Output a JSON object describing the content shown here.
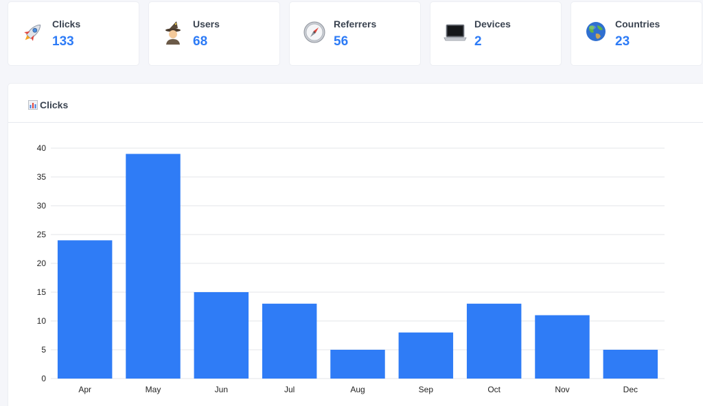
{
  "stats": [
    {
      "label": "Clicks",
      "value": "133",
      "icon": "rocket-icon"
    },
    {
      "label": "Users",
      "value": "68",
      "icon": "wizard-icon"
    },
    {
      "label": "Referrers",
      "value": "56",
      "icon": "compass-icon"
    },
    {
      "label": "Devices",
      "value": "2",
      "icon": "laptop-icon"
    },
    {
      "label": "Countries",
      "value": "23",
      "icon": "globe-icon"
    }
  ],
  "chart": {
    "title": "Clicks",
    "icon": "bar-chart-icon"
  },
  "colors": {
    "accent": "#2d7bf6",
    "bar": "#2f7cf6",
    "grid": "#e3e5ea"
  },
  "chart_data": {
    "type": "bar",
    "title": "Clicks",
    "categories": [
      "Apr",
      "May",
      "Jun",
      "Jul",
      "Aug",
      "Sep",
      "Oct",
      "Nov",
      "Dec"
    ],
    "values": [
      24,
      39,
      15,
      13,
      5,
      8,
      13,
      11,
      5
    ],
    "ylim": [
      0,
      40
    ],
    "yticks": [
      "0",
      "5",
      "10",
      "15",
      "20",
      "25",
      "30",
      "35",
      "40"
    ],
    "xlabel": "",
    "ylabel": "",
    "grid": true,
    "legend": "none"
  }
}
